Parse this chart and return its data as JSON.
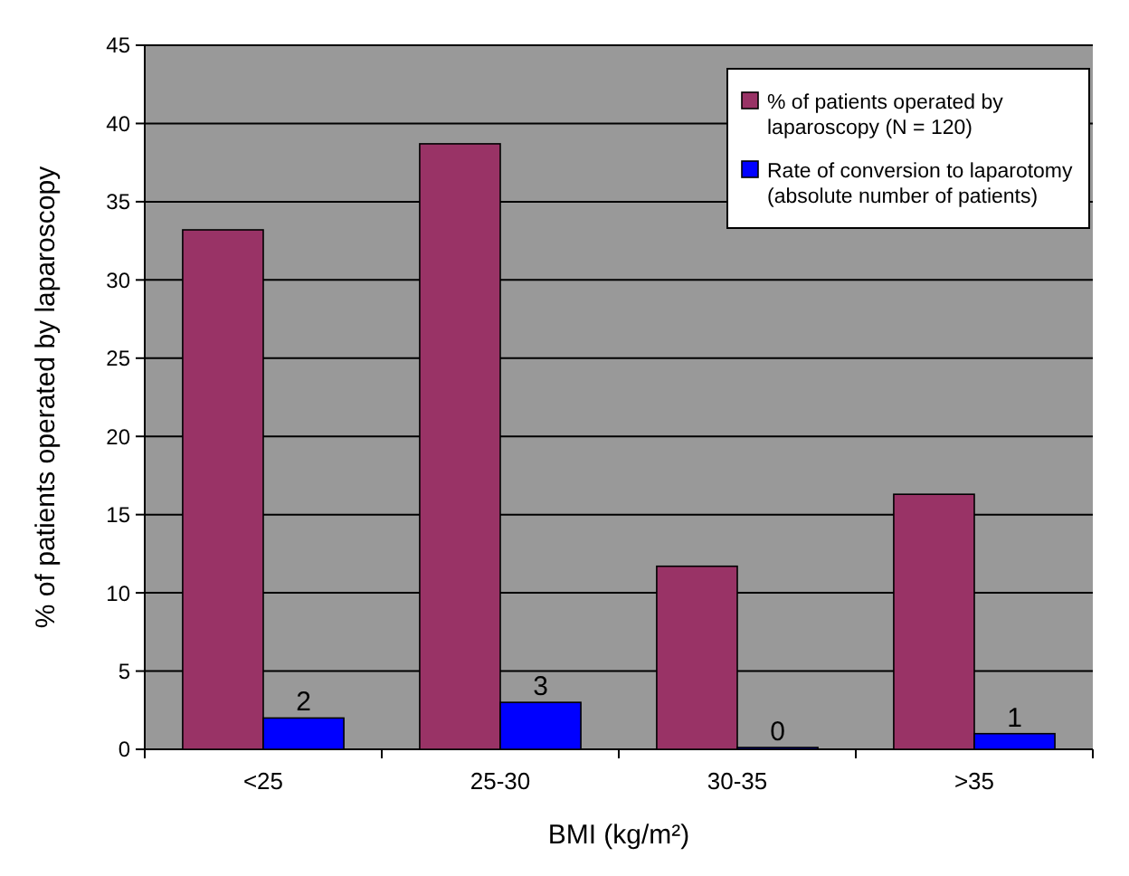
{
  "chart_data": {
    "type": "bar",
    "xlabel": "BMI (kg/m²)",
    "ylabel": "% of patients operated by laparoscopy",
    "categories": [
      "<25",
      "25-30",
      "30-35",
      ">35"
    ],
    "series": [
      {
        "name": "% of patients operated by laparoscopy (N = 120)",
        "color": "#993366",
        "values": [
          33.2,
          38.7,
          11.7,
          16.3
        ]
      },
      {
        "name": "Rate of conversion to laparotomy (absolute number of patients)",
        "color": "#0000ff",
        "values": [
          2,
          3,
          0,
          1
        ],
        "value_labels": [
          "2",
          "3",
          "0",
          "1"
        ]
      }
    ],
    "ylim": [
      0,
      45
    ],
    "yticks": [
      0,
      5,
      10,
      15,
      20,
      25,
      30,
      35,
      40,
      45
    ],
    "grid": "y",
    "legend": "top right"
  }
}
